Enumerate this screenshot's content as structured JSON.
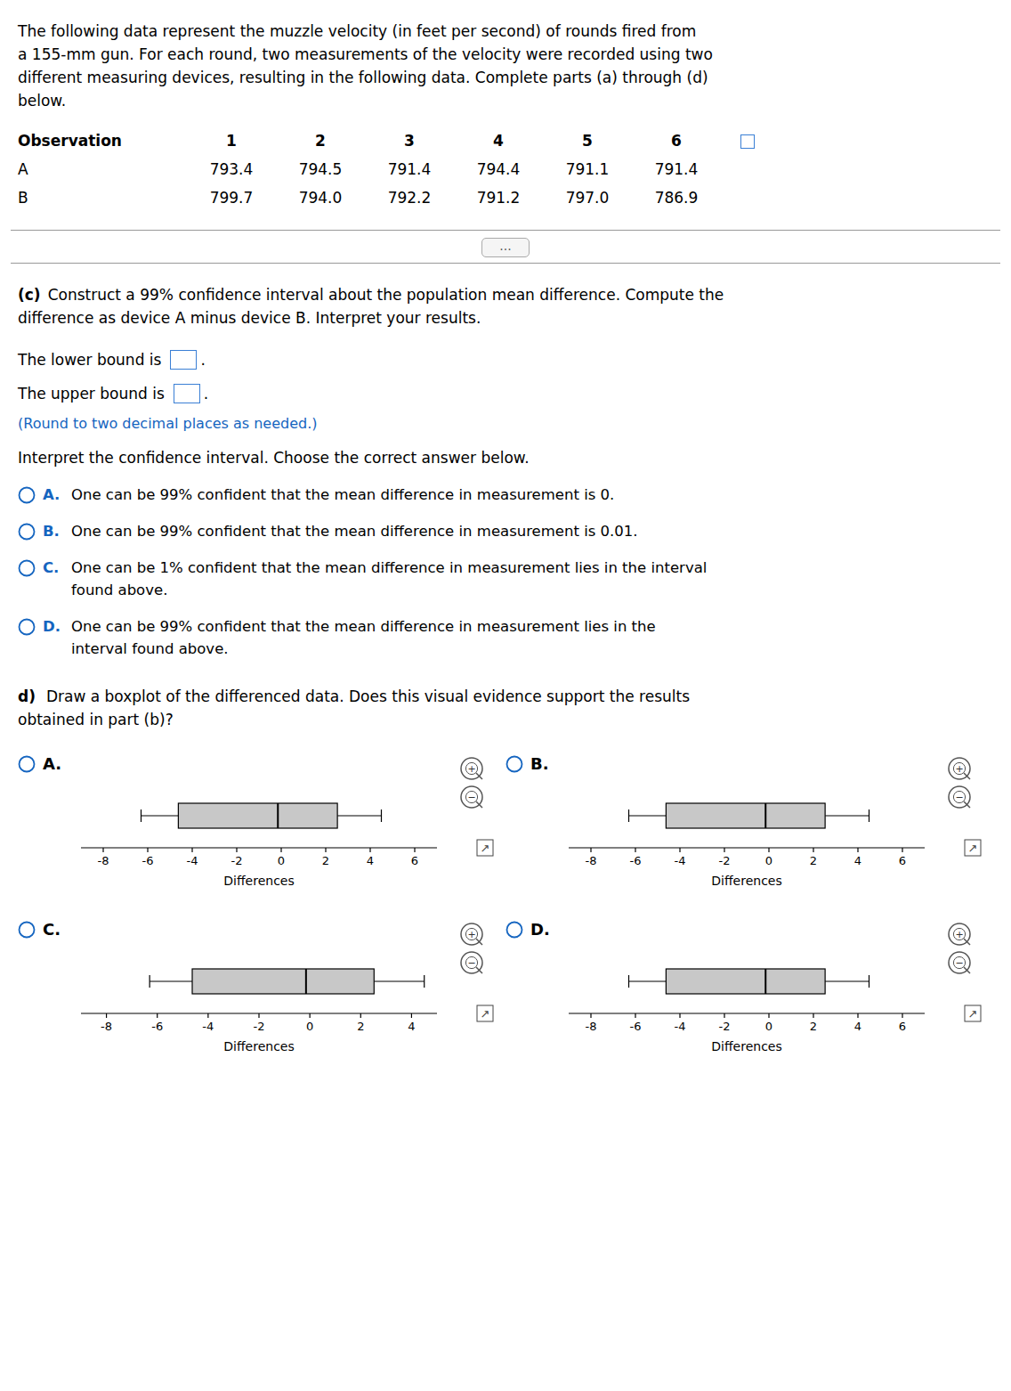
{
  "page": {
    "intro": [
      "The following data represent the muzzle velocity (in feet per second) of rounds fired from",
      "a 155-mm gun. For each round, two measurements of the velocity were recorded using two",
      "different measuring devices, resulting in the following data. Complete parts (a) through (d)",
      "below."
    ],
    "table": {
      "header": "Observation",
      "columns": [
        "1",
        "2",
        "3",
        "4",
        "5",
        "6"
      ],
      "rows": [
        {
          "name": "A",
          "values": [
            793.4,
            794.5,
            791.4,
            794.4,
            791.1,
            791.4
          ]
        },
        {
          "name": "B",
          "values": [
            799.7,
            794.0,
            792.2,
            791.2,
            797.0,
            786.9
          ],
          "value_labels": [
            "799.7",
            "794.0",
            "792.2",
            "791.2",
            "797.0",
            "786.9"
          ]
        }
      ]
    },
    "more_button": "...",
    "part_c": {
      "label": "(c)",
      "prompt": [
        "Construct a 99% confidence interval about the population mean difference. Compute the",
        "difference as device A minus device B. Interpret your results."
      ],
      "lower_bound": "The lower bound is",
      "upper_bound": "The upper bound is",
      "end_mark": ".",
      "round_note": "(Round to two decimal places as needed.)",
      "interpret": "Interpret the confidence interval. Choose the correct answer below.",
      "options": [
        {
          "label": "A.",
          "lines": [
            "One can be 99% confident that the mean difference in measurement is 0."
          ]
        },
        {
          "label": "B.",
          "lines": [
            "One can be 99% confident that the mean difference in measurement is 0.01."
          ]
        },
        {
          "label": "C.",
          "lines": [
            "One can be 1% confident that the mean difference in measurement lies in the interval",
            "found above."
          ]
        },
        {
          "label": "D.",
          "lines": [
            "One can be 99% confident that the mean difference in measurement lies in the",
            "interval found above."
          ]
        }
      ]
    },
    "part_d": {
      "label": "d)",
      "prompt": [
        "Draw a boxplot of the differenced data. Does this visual evidence support the results",
        "obtained in part (b)?"
      ]
    },
    "zoom_in": "+",
    "zoom_out": "−",
    "open_link": "↗",
    "option_color": "#1565c0",
    "note_color": "#1565c0",
    "separator_color": "#999999",
    "bg_color": "#ffffff"
  },
  "chart_data": [
    {
      "type": "boxplot",
      "title": "A.",
      "xlabel": "Differences",
      "orientation": "horizontal",
      "color": "#c8c8c8",
      "stats": {
        "min": -6.3,
        "q1": -4.625,
        "median": -0.15,
        "q3": 2.525,
        "max": 4.5
      },
      "xlim": [
        -9,
        7
      ],
      "xticks": [
        -8,
        -6,
        -4,
        -2,
        0,
        2,
        4,
        6
      ]
    },
    {
      "type": "boxplot",
      "title": "B.",
      "xlabel": "Differences",
      "orientation": "horizontal",
      "color": "#c8c8c8",
      "stats": {
        "min": -6.3,
        "q1": -4.625,
        "median": -0.15,
        "q3": 2.525,
        "max": 4.5
      },
      "xlim": [
        -9,
        7
      ],
      "xticks": [
        -8,
        -6,
        -4,
        -2,
        0,
        2,
        4,
        6
      ]
    },
    {
      "type": "boxplot",
      "title": "C.",
      "xlabel": "Differences",
      "orientation": "horizontal",
      "color": "#c8c8c8",
      "stats": {
        "min": -6.3,
        "q1": -4.625,
        "median": -0.15,
        "q3": 2.525,
        "max": 4.5
      },
      "xlim": [
        -9,
        5
      ],
      "xticks": [
        -8,
        -6,
        -4,
        -2,
        0,
        2,
        4
      ]
    },
    {
      "type": "boxplot",
      "title": "D.",
      "xlabel": "Differences",
      "orientation": "horizontal",
      "color": "#c8c8c8",
      "stats": {
        "min": -6.3,
        "q1": -4.625,
        "median": -0.15,
        "q3": 2.525,
        "max": 4.5
      },
      "xlim": [
        -9,
        7
      ],
      "xticks": [
        -8,
        -6,
        -4,
        -2,
        0,
        2,
        4,
        6
      ]
    }
  ]
}
